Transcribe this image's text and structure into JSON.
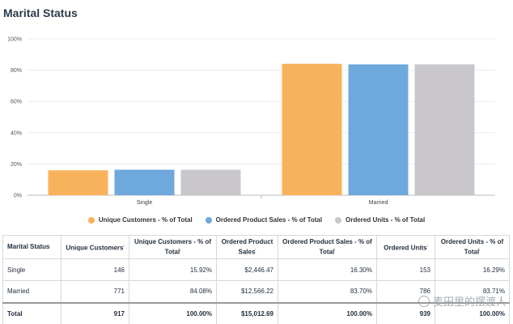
{
  "title": "Marital Status",
  "chart_data": {
    "type": "bar",
    "categories": [
      "Single",
      "Married"
    ],
    "series": [
      {
        "name": "Unique Customers - % of Total",
        "values": [
          15.92,
          84.08
        ],
        "color": "#f9b25c"
      },
      {
        "name": "Ordered Product Sales - % of Total",
        "values": [
          16.3,
          83.7
        ],
        "color": "#6fa8dc"
      },
      {
        "name": "Ordered Units - % of Total",
        "values": [
          16.29,
          83.71
        ],
        "color": "#c9c7cb"
      }
    ],
    "yticks": [
      "0%",
      "20%",
      "40%",
      "60%",
      "80%",
      "100%"
    ],
    "ylim": [
      0,
      100
    ],
    "legend_position": "bottom"
  },
  "table": {
    "headers": [
      "Marital Status",
      "Unique Customers",
      "Unique Customers - % of Total",
      "Ordered Product Sales",
      "Ordered Product Sales - % of Total",
      "Ordered Units",
      "Ordered Units - % of Total"
    ],
    "rows": [
      [
        "Single",
        "146",
        "15.92%",
        "$2,446.47",
        "16.30%",
        "153",
        "16.29%"
      ],
      [
        "Married",
        "771",
        "84.08%",
        "$12,566.22",
        "83.70%",
        "786",
        "83.71%"
      ]
    ],
    "total": [
      "Total",
      "917",
      "100.00%",
      "$15,012.69",
      "100.00%",
      "939",
      "100.00%"
    ]
  },
  "watermark": "麦田里的摆渡人"
}
